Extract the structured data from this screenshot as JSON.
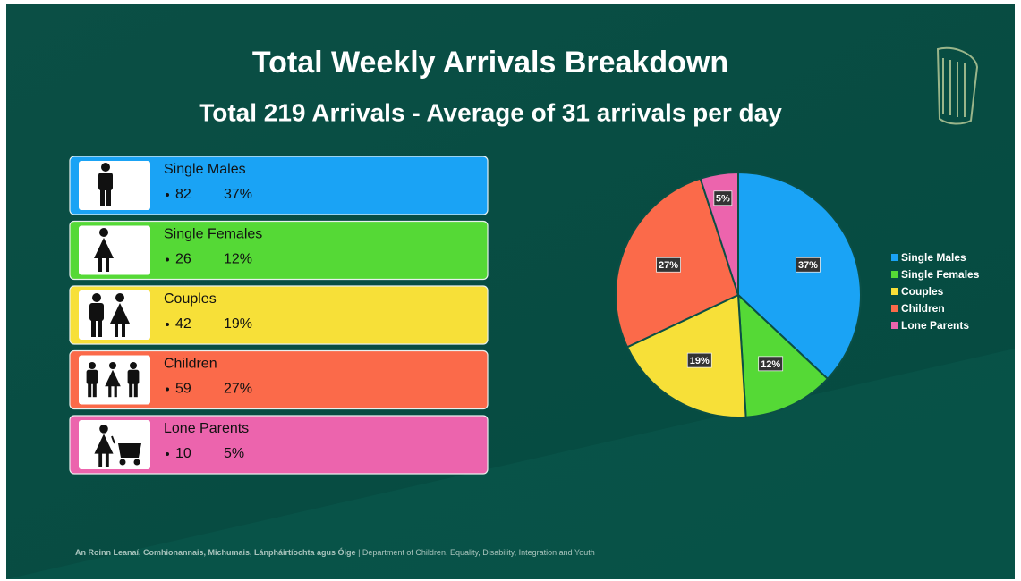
{
  "title": "Total Weekly Arrivals Breakdown",
  "subtitle": "Total 219 Arrivals - Average of  31 arrivals per day",
  "cards": [
    {
      "label": "Single Males",
      "count": 82,
      "percent": "37%"
    },
    {
      "label": "Single Females",
      "count": 26,
      "percent": "12%"
    },
    {
      "label": "Couples",
      "count": 42,
      "percent": "19%"
    },
    {
      "label": "Children",
      "count": 59,
      "percent": "27%"
    },
    {
      "label": "Lone Parents",
      "count": 10,
      "percent": "5%"
    }
  ],
  "chart_data": {
    "type": "pie",
    "categories": [
      "Single Males",
      "Single Females",
      "Couples",
      "Children",
      "Lone Parents"
    ],
    "values": [
      37,
      12,
      19,
      27,
      5
    ],
    "value_labels": [
      "37%",
      "12%",
      "19%",
      "27%",
      "5%"
    ],
    "colors": [
      "#1aa3f5",
      "#55d936",
      "#f7e038",
      "#fb6a4a",
      "#ec64ad"
    ],
    "legend": "right"
  },
  "footer": {
    "org_irish": "An Roinn Leanaí, Comhionannais, Michumais, Lánpháirtíochta agus Óige",
    "org_english": "| Department of Children, Equality, Disability, Integration and Youth"
  }
}
